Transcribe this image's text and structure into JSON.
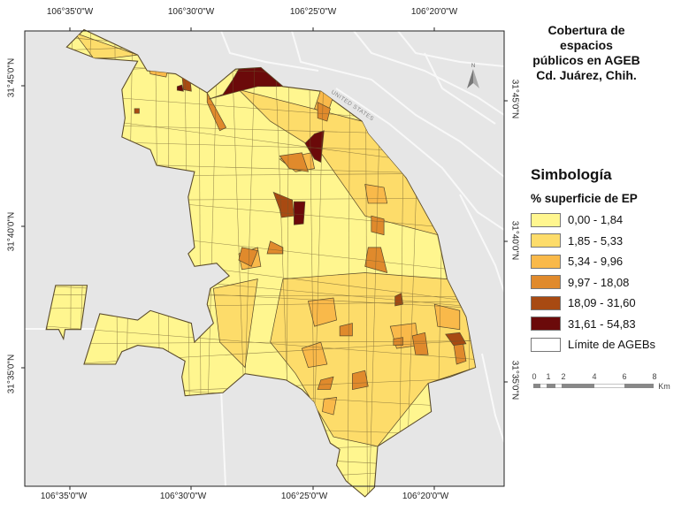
{
  "title": {
    "lines": [
      "Cobertura de espacios",
      "públicos en AGEB",
      "Cd. Juárez, Chih."
    ]
  },
  "axes": {
    "longitude_labels": [
      "106°35'0\"W",
      "106°30'0\"W",
      "106°25'0\"W",
      "106°20'0\"W"
    ],
    "latitude_labels": [
      "31°45'0\"N",
      "31°40'0\"N",
      "31°35'0\"N"
    ]
  },
  "map": {
    "north_arrow_label": "N",
    "country_label": "UNITED STATES",
    "background_color": "#e6e6e6",
    "boundary_color": "#5a4a2a"
  },
  "legend": {
    "heading": "Simbología",
    "field": "% superficie de EP",
    "classes": [
      {
        "label": "0,00 - 1,84",
        "color": "#fff68f"
      },
      {
        "label": "1,85 - 5,33",
        "color": "#fddc6a"
      },
      {
        "label": "5,34 - 9,96",
        "color": "#f9b94a"
      },
      {
        "label": "9,97 - 18,08",
        "color": "#e08a2c"
      },
      {
        "label": "18,09 - 31,60",
        "color": "#a84a12"
      },
      {
        "label": "31,61 - 54,83",
        "color": "#6b0a0a"
      }
    ],
    "boundary_label": "Límite de AGEBs"
  },
  "scale_bar": {
    "ticks": [
      "0",
      "1",
      "2",
      "4",
      "6",
      "8"
    ],
    "unit": "Km"
  }
}
